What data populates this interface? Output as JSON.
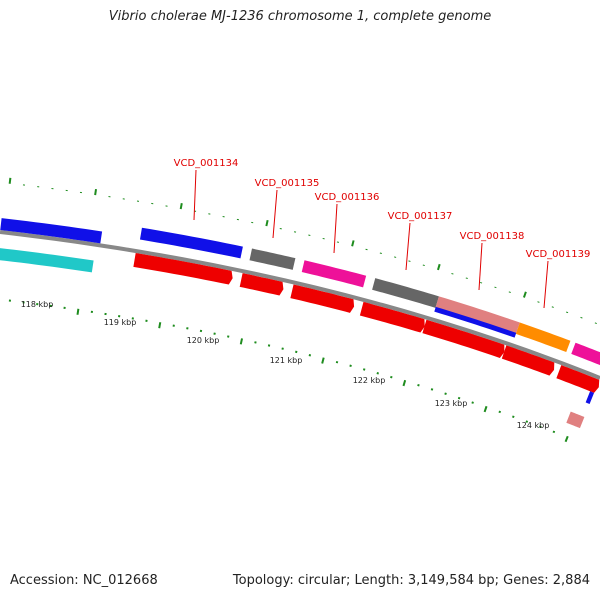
{
  "title": "Vibrio cholerae MJ-1236 chromosome 1, complete genome",
  "footer": {
    "accession": "Accession: NC_012668",
    "summary": "Topology: circular; Length: 3,149,584 bp; Genes: 2,884"
  },
  "ruler_labels": [
    "118 kbp",
    "119 kbp",
    "120 kbp",
    "121 kbp",
    "122 kbp",
    "123 kbp",
    "124 kbp"
  ],
  "gene_labels": [
    "VCD_001134",
    "VCD_001135",
    "VCD_001136",
    "VCD_001137",
    "VCD_001138",
    "VCD_001139"
  ],
  "colors": {
    "backbone": "#888888",
    "tick": "#1e8c1e",
    "label": "#e00000",
    "cds": "#ee0000",
    "blue": "#1010e8",
    "cyan": "#20c8c8",
    "gray": "#666666",
    "magenta": "#ee1199",
    "salmon": "#e08080",
    "orange": "#ff8c00"
  }
}
